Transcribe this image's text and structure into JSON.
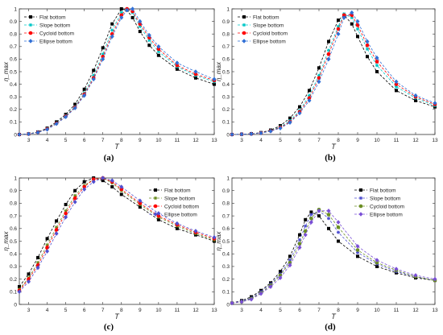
{
  "chart_data": [
    {
      "type": "line",
      "panel_label": "(a)",
      "xlabel": "T",
      "ylabel": "η_max",
      "xlim": [
        2.5,
        13
      ],
      "ylim": [
        0,
        1
      ],
      "xticks": [
        3,
        4,
        5,
        6,
        7,
        8,
        9,
        10,
        11,
        12,
        13
      ],
      "yticks": [
        0,
        0.1,
        0.2,
        0.3,
        0.4,
        0.5,
        0.6,
        0.7,
        0.8,
        0.9,
        1
      ],
      "legend_position": "top-left",
      "series": [
        {
          "name": "Flat bottom",
          "color": "#000000",
          "marker": "square",
          "x": [
            2.5,
            3,
            3.5,
            4,
            4.5,
            5,
            5.5,
            6,
            6.5,
            7,
            7.5,
            8,
            8.3,
            8.6,
            9,
            9.5,
            10,
            11,
            12,
            13
          ],
          "y": [
            0,
            0.005,
            0.02,
            0.05,
            0.1,
            0.16,
            0.24,
            0.36,
            0.51,
            0.69,
            0.88,
            1.0,
            0.99,
            0.93,
            0.82,
            0.71,
            0.63,
            0.52,
            0.45,
            0.4
          ]
        },
        {
          "name": "Slope bottom",
          "color": "#00c8c8",
          "marker": "star",
          "x": [
            2.5,
            3,
            3.5,
            4,
            4.5,
            5,
            5.5,
            6,
            6.5,
            7,
            7.5,
            8,
            8.3,
            8.6,
            9,
            9.5,
            10,
            11,
            12,
            13
          ],
          "y": [
            0,
            0.004,
            0.018,
            0.045,
            0.09,
            0.15,
            0.22,
            0.33,
            0.47,
            0.64,
            0.83,
            0.97,
            1.0,
            0.97,
            0.86,
            0.75,
            0.66,
            0.54,
            0.47,
            0.42
          ]
        },
        {
          "name": "Cycloid bottom",
          "color": "#ff0000",
          "marker": "circle",
          "x": [
            2.5,
            3,
            3.5,
            4,
            4.5,
            5,
            5.5,
            6,
            6.5,
            7,
            7.5,
            8,
            8.3,
            8.6,
            9,
            9.5,
            10,
            11,
            12,
            13
          ],
          "y": [
            0,
            0.004,
            0.017,
            0.043,
            0.088,
            0.145,
            0.215,
            0.32,
            0.45,
            0.62,
            0.8,
            0.95,
            1.0,
            0.98,
            0.88,
            0.77,
            0.68,
            0.55,
            0.48,
            0.43
          ]
        },
        {
          "name": "Ellipse bottom",
          "color": "#2f6fd6",
          "marker": "diamond",
          "x": [
            2.5,
            3,
            3.5,
            4,
            4.5,
            5,
            5.5,
            6,
            6.5,
            7,
            7.5,
            8,
            8.3,
            8.6,
            9,
            9.5,
            10,
            11,
            12,
            13
          ],
          "y": [
            0,
            0.004,
            0.016,
            0.04,
            0.085,
            0.14,
            0.21,
            0.31,
            0.44,
            0.6,
            0.78,
            0.93,
            0.99,
            1.0,
            0.9,
            0.79,
            0.7,
            0.57,
            0.5,
            0.44
          ]
        }
      ]
    },
    {
      "type": "line",
      "panel_label": "(b)",
      "xlabel": "T",
      "ylabel": "η_max",
      "xlim": [
        2.5,
        13
      ],
      "ylim": [
        0,
        1
      ],
      "xticks": [
        3,
        4,
        5,
        6,
        7,
        8,
        9,
        10,
        11,
        12,
        13
      ],
      "yticks": [
        0,
        0.1,
        0.2,
        0.3,
        0.4,
        0.5,
        0.6,
        0.7,
        0.8,
        0.9,
        1
      ],
      "legend_position": "top-left",
      "series": [
        {
          "name": "Flat bottom",
          "color": "#000000",
          "marker": "square",
          "x": [
            2.5,
            3,
            3.5,
            4,
            4.5,
            5,
            5.5,
            6,
            6.5,
            7,
            7.5,
            8,
            8.3,
            8.7,
            9,
            9.5,
            10,
            11,
            12,
            13
          ],
          "y": [
            0,
            0.002,
            0.006,
            0.015,
            0.035,
            0.07,
            0.13,
            0.22,
            0.35,
            0.53,
            0.74,
            0.91,
            0.95,
            0.88,
            0.78,
            0.62,
            0.5,
            0.35,
            0.27,
            0.22
          ]
        },
        {
          "name": "Slope bottom",
          "color": "#00c8c8",
          "marker": "star",
          "x": [
            2.5,
            3,
            3.5,
            4,
            4.5,
            5,
            5.5,
            6,
            6.5,
            7,
            7.5,
            8,
            8.3,
            8.7,
            9,
            9.5,
            10,
            11,
            12,
            13
          ],
          "y": [
            0,
            0.002,
            0.005,
            0.013,
            0.03,
            0.06,
            0.11,
            0.19,
            0.31,
            0.47,
            0.67,
            0.86,
            0.96,
            0.93,
            0.84,
            0.68,
            0.55,
            0.38,
            0.29,
            0.23
          ]
        },
        {
          "name": "Cycloid bottom",
          "color": "#ff0000",
          "marker": "circle",
          "x": [
            2.5,
            3,
            3.5,
            4,
            4.5,
            5,
            5.5,
            6,
            6.5,
            7,
            7.5,
            8,
            8.3,
            8.7,
            9,
            9.5,
            10,
            11,
            12,
            13
          ],
          "y": [
            0,
            0.002,
            0.005,
            0.012,
            0.028,
            0.055,
            0.1,
            0.18,
            0.29,
            0.45,
            0.64,
            0.84,
            0.95,
            0.95,
            0.87,
            0.71,
            0.58,
            0.4,
            0.3,
            0.24
          ]
        },
        {
          "name": "Ellipse bottom",
          "color": "#2f6fd6",
          "marker": "diamond",
          "x": [
            2.5,
            3,
            3.5,
            4,
            4.5,
            5,
            5.5,
            6,
            6.5,
            7,
            7.5,
            8,
            8.3,
            8.7,
            9,
            9.5,
            10,
            11,
            12,
            13
          ],
          "y": [
            0,
            0.002,
            0.005,
            0.011,
            0.026,
            0.05,
            0.095,
            0.17,
            0.27,
            0.42,
            0.6,
            0.8,
            0.93,
            0.97,
            0.9,
            0.74,
            0.61,
            0.42,
            0.31,
            0.25
          ]
        }
      ]
    },
    {
      "type": "line",
      "panel_label": "(c)",
      "xlabel": "T",
      "ylabel": "η_max",
      "xlim": [
        2.5,
        13
      ],
      "ylim": [
        0,
        1
      ],
      "xticks": [
        3,
        4,
        5,
        6,
        7,
        8,
        9,
        10,
        11,
        12,
        13
      ],
      "yticks": [
        0,
        0.1,
        0.2,
        0.3,
        0.4,
        0.5,
        0.6,
        0.7,
        0.8,
        0.9,
        1
      ],
      "legend_position": "top-right",
      "series": [
        {
          "name": "Flat bottom",
          "color": "#000000",
          "marker": "square",
          "x": [
            2.5,
            3,
            3.5,
            4,
            4.5,
            5,
            5.5,
            6,
            6.5,
            7,
            7.5,
            8,
            9,
            10,
            11,
            12,
            13
          ],
          "y": [
            0.14,
            0.24,
            0.37,
            0.52,
            0.66,
            0.79,
            0.9,
            0.97,
            1.0,
            0.98,
            0.93,
            0.87,
            0.77,
            0.67,
            0.6,
            0.55,
            0.5
          ]
        },
        {
          "name": "Slope bottom",
          "color": "#6b8e23",
          "marker": "star",
          "x": [
            2.5,
            3,
            3.5,
            4,
            4.5,
            5,
            5.5,
            6,
            6.5,
            7,
            7.5,
            8,
            9,
            10,
            11,
            12,
            13
          ],
          "y": [
            0.12,
            0.21,
            0.33,
            0.47,
            0.61,
            0.74,
            0.86,
            0.94,
            0.99,
            1.0,
            0.96,
            0.9,
            0.79,
            0.69,
            0.62,
            0.56,
            0.51
          ]
        },
        {
          "name": "Cycloid bottom",
          "color": "#ff0000",
          "marker": "circle",
          "x": [
            2.5,
            3,
            3.5,
            4,
            4.5,
            5,
            5.5,
            6,
            6.5,
            7,
            7.5,
            8,
            9,
            10,
            11,
            12,
            13
          ],
          "y": [
            0.11,
            0.2,
            0.31,
            0.45,
            0.59,
            0.72,
            0.84,
            0.93,
            0.99,
            1.0,
            0.97,
            0.91,
            0.8,
            0.7,
            0.63,
            0.57,
            0.52
          ]
        },
        {
          "name": "Ellipse bottom",
          "color": "#5050d0",
          "marker": "diamond",
          "x": [
            2.5,
            3,
            3.5,
            4,
            4.5,
            5,
            5.5,
            6,
            6.5,
            7,
            7.5,
            8,
            9,
            10,
            11,
            12,
            13
          ],
          "y": [
            0.1,
            0.18,
            0.29,
            0.42,
            0.56,
            0.69,
            0.81,
            0.91,
            0.97,
            1.0,
            0.98,
            0.93,
            0.82,
            0.72,
            0.64,
            0.58,
            0.53
          ]
        }
      ]
    },
    {
      "type": "line",
      "panel_label": "(d)",
      "xlabel": "T",
      "ylabel": "η_max",
      "xlim": [
        2.5,
        13
      ],
      "ylim": [
        0,
        1
      ],
      "xticks": [
        3,
        4,
        5,
        6,
        7,
        8,
        9,
        10,
        11,
        12,
        13
      ],
      "yticks": [
        0,
        0.1,
        0.2,
        0.3,
        0.4,
        0.5,
        0.6,
        0.7,
        0.8,
        0.9,
        1
      ],
      "legend_position": "top-right",
      "series": [
        {
          "name": "Flat bottom",
          "color": "#000000",
          "marker": "square",
          "x": [
            2.5,
            3,
            3.5,
            4,
            4.5,
            5,
            5.5,
            6,
            6.3,
            6.6,
            7,
            7.5,
            8,
            9,
            10,
            11,
            12,
            13
          ],
          "y": [
            0.01,
            0.03,
            0.06,
            0.11,
            0.17,
            0.26,
            0.38,
            0.55,
            0.67,
            0.73,
            0.7,
            0.6,
            0.5,
            0.38,
            0.3,
            0.25,
            0.21,
            0.19
          ]
        },
        {
          "name": "Slope bottom",
          "color": "#5050d0",
          "marker": "star",
          "x": [
            2.5,
            3,
            3.5,
            4,
            4.5,
            5,
            5.5,
            6,
            6.3,
            6.6,
            7,
            7.5,
            8,
            9,
            10,
            11,
            12,
            13
          ],
          "y": [
            0.01,
            0.025,
            0.05,
            0.1,
            0.16,
            0.24,
            0.35,
            0.51,
            0.62,
            0.71,
            0.74,
            0.68,
            0.57,
            0.41,
            0.32,
            0.26,
            0.22,
            0.19
          ]
        },
        {
          "name": "Cycloid bottom",
          "color": "#6b8e23",
          "marker": "circle",
          "x": [
            2.5,
            3,
            3.5,
            4,
            4.5,
            5,
            5.5,
            6,
            6.3,
            6.6,
            7,
            7.5,
            8,
            9,
            10,
            11,
            12,
            13
          ],
          "y": [
            0.01,
            0.02,
            0.045,
            0.09,
            0.15,
            0.23,
            0.33,
            0.48,
            0.58,
            0.68,
            0.75,
            0.71,
            0.61,
            0.43,
            0.33,
            0.27,
            0.22,
            0.19
          ]
        },
        {
          "name": "Ellipse bottom",
          "color": "#7a4fd6",
          "marker": "diamond",
          "x": [
            2.5,
            3,
            3.5,
            4,
            4.5,
            5,
            5.5,
            6,
            6.3,
            6.6,
            7,
            7.5,
            8,
            9,
            10,
            11,
            12,
            13
          ],
          "y": [
            0.01,
            0.02,
            0.04,
            0.085,
            0.14,
            0.21,
            0.31,
            0.45,
            0.55,
            0.65,
            0.74,
            0.74,
            0.65,
            0.46,
            0.35,
            0.28,
            0.23,
            0.2
          ]
        }
      ]
    }
  ]
}
